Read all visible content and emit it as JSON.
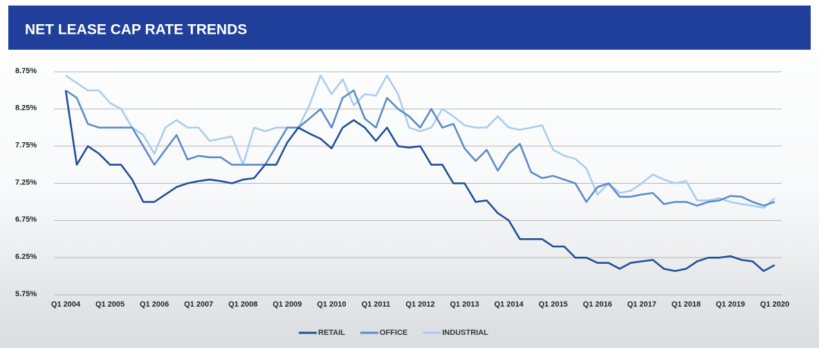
{
  "chart_data": {
    "type": "line",
    "title": "NET LEASE CAP RATE TRENDS",
    "categories": [
      "Q1 2004",
      null,
      null,
      null,
      "Q1 2005",
      null,
      null,
      null,
      "Q1 2006",
      null,
      null,
      null,
      "Q1 2007",
      null,
      null,
      null,
      "Q1 2008",
      null,
      null,
      null,
      "Q1 2009",
      null,
      null,
      null,
      "Q1 2010",
      null,
      null,
      null,
      "Q1 2011",
      null,
      null,
      null,
      "Q1 2012",
      null,
      null,
      null,
      "Q1 2013",
      null,
      null,
      null,
      "Q1 2014",
      null,
      null,
      null,
      "Q1 2015",
      null,
      null,
      null,
      "Q1 2016",
      null,
      null,
      null,
      "Q1 2017",
      null,
      null,
      null,
      "Q1 2018",
      null,
      null,
      null,
      "Q1 2019",
      null,
      null,
      null,
      "Q1 2020"
    ],
    "series": [
      {
        "name": "RETAIL",
        "color": "#1f4e96",
        "values": [
          8.5,
          7.5,
          7.75,
          7.65,
          7.5,
          7.5,
          7.3,
          7.0,
          7.0,
          7.1,
          7.2,
          7.25,
          7.28,
          7.3,
          7.28,
          7.25,
          7.3,
          7.32,
          7.5,
          7.5,
          7.8,
          8.0,
          7.92,
          7.85,
          7.72,
          8.0,
          8.1,
          8.0,
          7.82,
          8.0,
          7.75,
          7.73,
          7.75,
          7.5,
          7.5,
          7.25,
          7.25,
          7.0,
          7.02,
          6.85,
          6.75,
          6.5,
          6.5,
          6.5,
          6.4,
          6.4,
          6.25,
          6.25,
          6.18,
          6.18,
          6.1,
          6.18,
          6.2,
          6.22,
          6.1,
          6.07,
          6.1,
          6.2,
          6.25,
          6.25,
          6.27,
          6.22,
          6.2,
          6.07,
          6.15
        ]
      },
      {
        "name": "OFFICE",
        "color": "#5b8ac6",
        "values": [
          8.5,
          8.4,
          8.05,
          8.0,
          8.0,
          8.0,
          8.0,
          7.75,
          7.5,
          7.7,
          7.9,
          7.57,
          7.62,
          7.6,
          7.6,
          7.5,
          7.5,
          7.5,
          7.5,
          7.75,
          8.0,
          8.0,
          8.12,
          8.25,
          8.0,
          8.4,
          8.5,
          8.12,
          8.0,
          8.4,
          8.25,
          8.15,
          8.0,
          8.25,
          8.0,
          8.05,
          7.72,
          7.55,
          7.7,
          7.42,
          7.65,
          7.78,
          7.4,
          7.32,
          7.35,
          7.3,
          7.25,
          7.0,
          7.2,
          7.25,
          7.07,
          7.07,
          7.1,
          7.12,
          6.97,
          7.0,
          7.0,
          6.95,
          7.0,
          7.02,
          7.08,
          7.07,
          7.0,
          6.95,
          7.0
        ]
      },
      {
        "name": "INDUSTRIAL",
        "color": "#a9cdee",
        "values": [
          8.7,
          8.6,
          8.5,
          8.5,
          8.33,
          8.25,
          8.0,
          7.9,
          7.65,
          8.0,
          8.1,
          8.0,
          8.0,
          7.82,
          7.85,
          7.88,
          7.5,
          8.0,
          7.95,
          8.0,
          8.0,
          8.0,
          8.3,
          8.7,
          8.45,
          8.65,
          8.3,
          8.45,
          8.43,
          8.7,
          8.45,
          8.0,
          7.95,
          8.0,
          8.25,
          8.15,
          8.03,
          8.0,
          8.0,
          8.15,
          8.0,
          7.97,
          8.0,
          8.03,
          7.7,
          7.62,
          7.58,
          7.45,
          7.1,
          7.25,
          7.12,
          7.15,
          7.25,
          7.37,
          7.3,
          7.25,
          7.28,
          7.02,
          7.02,
          7.05,
          7.0,
          6.97,
          6.95,
          6.92,
          7.05
        ]
      }
    ],
    "ylim": [
      5.75,
      8.75
    ],
    "yticks": [
      {
        "value": 5.75,
        "label": "5.75%"
      },
      {
        "value": 6.25,
        "label": "6.25%"
      },
      {
        "value": 6.75,
        "label": "6.75%"
      },
      {
        "value": 7.25,
        "label": "7.25%"
      },
      {
        "value": 7.75,
        "label": "7.75%"
      },
      {
        "value": 8.25,
        "label": "8.25%"
      },
      {
        "value": 8.75,
        "label": "8.75%"
      }
    ],
    "grid": true,
    "legend": "bottom"
  }
}
